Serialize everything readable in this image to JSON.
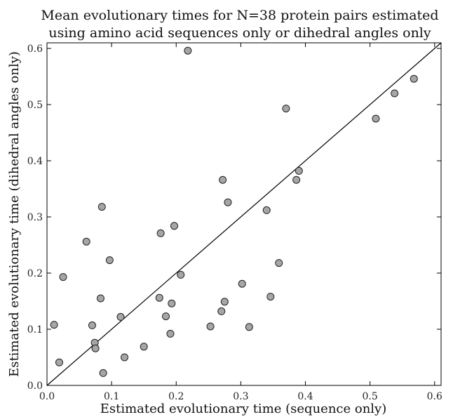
{
  "chart_data": {
    "type": "scatter",
    "title": [
      "Mean evolutionary times for N=38 protein pairs estimated",
      "using amino acid sequences only or dihedral angles only"
    ],
    "xlabel": "Estimated evolutionary time (sequence only)",
    "ylabel": "Estimated evolutionary time (dihedral angles only)",
    "xlim": [
      0.0,
      0.61
    ],
    "ylim": [
      0.0,
      0.61
    ],
    "xticks": [
      "0.0",
      "0.1",
      "0.2",
      "0.3",
      "0.4",
      "0.5",
      "0.6"
    ],
    "yticks": [
      "0.0",
      "0.1",
      "0.2",
      "0.3",
      "0.4",
      "0.5",
      "0.6"
    ],
    "reference_line": "y = x",
    "grid": false,
    "marker_color": "#a6a6a6",
    "series": [
      {
        "points": [
          [
            0.011,
            0.108
          ],
          [
            0.019,
            0.041
          ],
          [
            0.025,
            0.193
          ],
          [
            0.061,
            0.256
          ],
          [
            0.07,
            0.107
          ],
          [
            0.074,
            0.076
          ],
          [
            0.075,
            0.066
          ],
          [
            0.083,
            0.155
          ],
          [
            0.085,
            0.318
          ],
          [
            0.087,
            0.022
          ],
          [
            0.097,
            0.223
          ],
          [
            0.114,
            0.122
          ],
          [
            0.12,
            0.05
          ],
          [
            0.15,
            0.069
          ],
          [
            0.174,
            0.156
          ],
          [
            0.176,
            0.271
          ],
          [
            0.184,
            0.123
          ],
          [
            0.191,
            0.092
          ],
          [
            0.193,
            0.146
          ],
          [
            0.197,
            0.284
          ],
          [
            0.207,
            0.197
          ],
          [
            0.218,
            0.596
          ],
          [
            0.253,
            0.105
          ],
          [
            0.27,
            0.132
          ],
          [
            0.272,
            0.366
          ],
          [
            0.275,
            0.149
          ],
          [
            0.28,
            0.326
          ],
          [
            0.302,
            0.181
          ],
          [
            0.313,
            0.104
          ],
          [
            0.34,
            0.312
          ],
          [
            0.346,
            0.158
          ],
          [
            0.359,
            0.218
          ],
          [
            0.37,
            0.493
          ],
          [
            0.386,
            0.366
          ],
          [
            0.39,
            0.382
          ],
          [
            0.509,
            0.475
          ],
          [
            0.538,
            0.52
          ],
          [
            0.568,
            0.546
          ]
        ]
      }
    ]
  }
}
